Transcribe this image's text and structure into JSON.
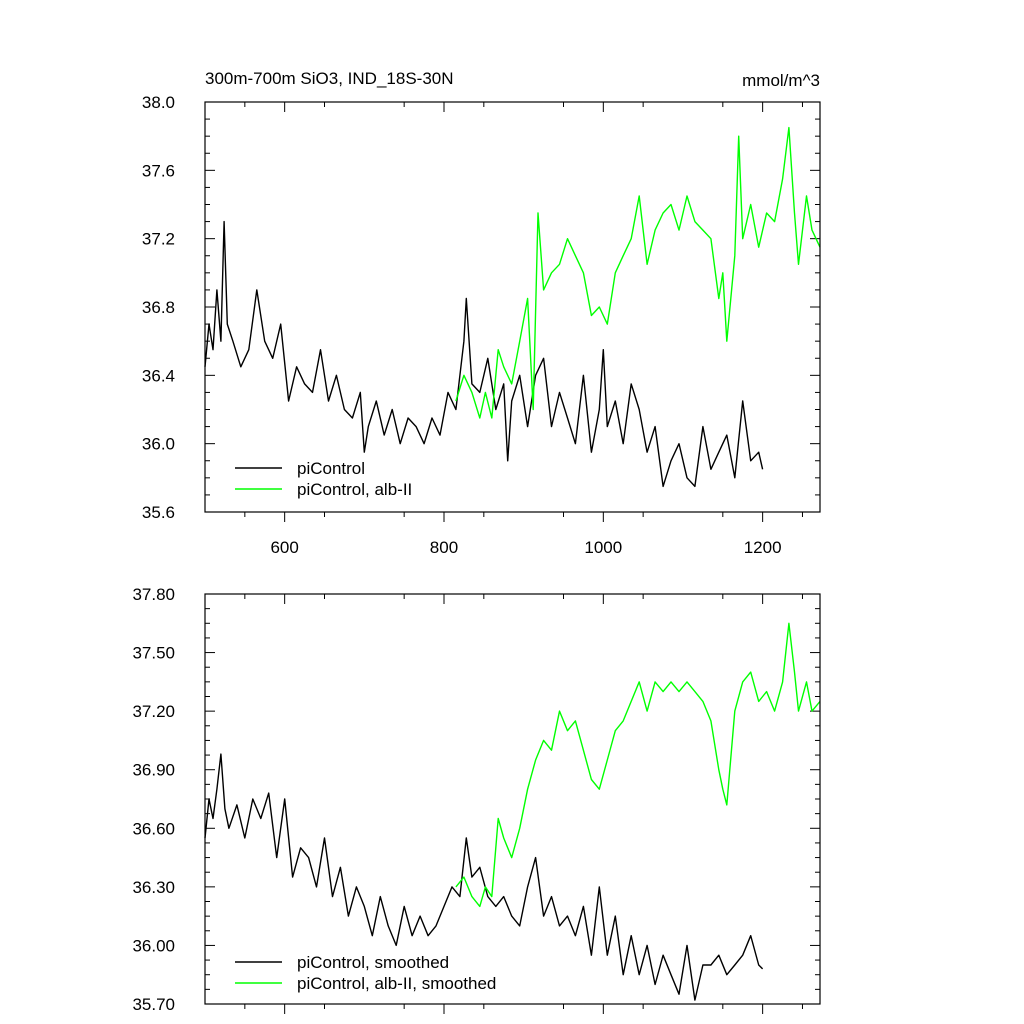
{
  "chart_data": [
    {
      "type": "line",
      "title": "300m-700m SiO3, IND_18S-30N",
      "units": "mmol/m^3",
      "xlim": [
        500,
        1272
      ],
      "ylim": [
        35.6,
        38.0
      ],
      "xticks": [
        600,
        800,
        1000,
        1200
      ],
      "xtick_labels": [
        "600",
        "800",
        "1000",
        "1200"
      ],
      "yticks": [
        35.6,
        36.0,
        36.4,
        36.8,
        37.2,
        37.6,
        38.0
      ],
      "ytick_labels": [
        "35.6",
        "36.0",
        "36.4",
        "36.8",
        "37.2",
        "37.6",
        "38.0"
      ],
      "legend_position": "bottom-left",
      "grid": false,
      "series": [
        {
          "name": "piControl",
          "color": "#000000",
          "x": [
            500,
            505,
            510,
            515,
            520,
            524,
            528,
            535,
            545,
            555,
            565,
            575,
            585,
            595,
            605,
            615,
            625,
            635,
            645,
            655,
            665,
            675,
            685,
            695,
            700,
            705,
            715,
            725,
            735,
            745,
            755,
            765,
            775,
            785,
            795,
            805,
            815,
            825,
            828,
            835,
            845,
            855,
            865,
            875,
            880,
            885,
            895,
            905,
            915,
            925,
            935,
            945,
            955,
            965,
            975,
            985,
            995,
            1000,
            1005,
            1015,
            1025,
            1035,
            1045,
            1055,
            1065,
            1075,
            1085,
            1095,
            1105,
            1115,
            1125,
            1135,
            1145,
            1155,
            1165,
            1175,
            1185,
            1195,
            1200
          ],
          "values": [
            36.45,
            36.7,
            36.55,
            36.9,
            36.6,
            37.3,
            36.7,
            36.6,
            36.45,
            36.55,
            36.9,
            36.6,
            36.5,
            36.7,
            36.25,
            36.45,
            36.35,
            36.3,
            36.55,
            36.25,
            36.4,
            36.2,
            36.15,
            36.3,
            35.95,
            36.1,
            36.25,
            36.05,
            36.2,
            36.0,
            36.15,
            36.1,
            36.0,
            36.15,
            36.05,
            36.3,
            36.2,
            36.6,
            36.85,
            36.35,
            36.3,
            36.5,
            36.2,
            36.35,
            35.9,
            36.25,
            36.4,
            36.1,
            36.4,
            36.5,
            36.1,
            36.3,
            36.15,
            36.0,
            36.4,
            35.95,
            36.2,
            36.55,
            36.1,
            36.25,
            36.0,
            36.35,
            36.2,
            35.95,
            36.1,
            35.75,
            35.9,
            36.0,
            35.8,
            35.75,
            36.1,
            35.85,
            35.95,
            36.05,
            35.8,
            36.25,
            35.9,
            35.95,
            35.85
          ]
        },
        {
          "name": "piControl, alb-II",
          "color": "#00ff00",
          "x": [
            815,
            825,
            835,
            845,
            852,
            860,
            868,
            875,
            885,
            895,
            905,
            912,
            918,
            925,
            935,
            945,
            955,
            965,
            975,
            985,
            995,
            1005,
            1015,
            1025,
            1035,
            1045,
            1055,
            1065,
            1075,
            1085,
            1095,
            1105,
            1115,
            1125,
            1135,
            1145,
            1150,
            1155,
            1165,
            1170,
            1175,
            1185,
            1195,
            1205,
            1215,
            1225,
            1233,
            1240,
            1245,
            1255,
            1262,
            1272
          ],
          "values": [
            36.25,
            36.4,
            36.3,
            36.15,
            36.3,
            36.15,
            36.55,
            36.45,
            36.35,
            36.6,
            36.85,
            36.2,
            37.35,
            36.9,
            37.0,
            37.05,
            37.2,
            37.1,
            37.0,
            36.75,
            36.8,
            36.7,
            37.0,
            37.1,
            37.2,
            37.45,
            37.05,
            37.25,
            37.35,
            37.4,
            37.25,
            37.45,
            37.3,
            37.25,
            37.2,
            36.85,
            37.0,
            36.6,
            37.1,
            37.8,
            37.2,
            37.4,
            37.15,
            37.35,
            37.3,
            37.55,
            37.85,
            37.35,
            37.05,
            37.45,
            37.25,
            37.15
          ]
        }
      ]
    },
    {
      "type": "line",
      "title": "",
      "xlim": [
        500,
        1272
      ],
      "ylim": [
        35.7,
        37.8
      ],
      "xticks": [
        600,
        800,
        1000,
        1200
      ],
      "xtick_labels": [],
      "yticks": [
        35.7,
        36.0,
        36.3,
        36.6,
        36.9,
        37.2,
        37.5,
        37.8
      ],
      "ytick_labels": [
        "35.70",
        "36.00",
        "36.30",
        "36.60",
        "36.90",
        "37.20",
        "37.50",
        "37.80"
      ],
      "legend_position": "bottom-left",
      "grid": false,
      "series": [
        {
          "name": "piControl, smoothed",
          "color": "#000000",
          "x": [
            500,
            505,
            510,
            515,
            520,
            525,
            530,
            540,
            550,
            560,
            570,
            580,
            590,
            600,
            610,
            620,
            630,
            640,
            650,
            660,
            670,
            680,
            690,
            700,
            710,
            720,
            730,
            740,
            750,
            760,
            770,
            780,
            790,
            800,
            810,
            820,
            828,
            835,
            845,
            855,
            865,
            875,
            885,
            895,
            905,
            915,
            925,
            935,
            945,
            955,
            965,
            975,
            985,
            995,
            1005,
            1015,
            1025,
            1035,
            1045,
            1055,
            1065,
            1075,
            1085,
            1095,
            1105,
            1115,
            1125,
            1135,
            1145,
            1155,
            1165,
            1175,
            1185,
            1195,
            1200
          ],
          "values": [
            36.55,
            36.75,
            36.65,
            36.8,
            36.98,
            36.7,
            36.6,
            36.72,
            36.55,
            36.75,
            36.65,
            36.78,
            36.45,
            36.75,
            36.35,
            36.5,
            36.45,
            36.3,
            36.55,
            36.25,
            36.4,
            36.15,
            36.3,
            36.2,
            36.05,
            36.25,
            36.1,
            36.0,
            36.2,
            36.05,
            36.15,
            36.05,
            36.1,
            36.2,
            36.3,
            36.25,
            36.55,
            36.35,
            36.4,
            36.25,
            36.2,
            36.25,
            36.15,
            36.1,
            36.3,
            36.45,
            36.15,
            36.25,
            36.1,
            36.15,
            36.05,
            36.2,
            35.95,
            36.3,
            35.95,
            36.15,
            35.85,
            36.05,
            35.85,
            36.0,
            35.8,
            35.95,
            35.85,
            35.75,
            36.0,
            35.72,
            35.9,
            35.9,
            35.95,
            35.85,
            35.9,
            35.95,
            36.05,
            35.9,
            35.88
          ]
        },
        {
          "name": "piControl, alb-II, smoothed",
          "color": "#00ff00",
          "x": [
            815,
            825,
            835,
            845,
            852,
            860,
            868,
            875,
            885,
            895,
            905,
            915,
            925,
            935,
            945,
            955,
            965,
            975,
            985,
            995,
            1005,
            1015,
            1025,
            1035,
            1045,
            1055,
            1065,
            1075,
            1085,
            1095,
            1105,
            1115,
            1125,
            1135,
            1145,
            1150,
            1155,
            1165,
            1175,
            1185,
            1195,
            1205,
            1215,
            1225,
            1233,
            1240,
            1245,
            1255,
            1262,
            1272
          ],
          "values": [
            36.3,
            36.35,
            36.25,
            36.2,
            36.3,
            36.25,
            36.65,
            36.55,
            36.45,
            36.6,
            36.8,
            36.95,
            37.05,
            37.0,
            37.2,
            37.1,
            37.15,
            37.0,
            36.85,
            36.8,
            36.95,
            37.1,
            37.15,
            37.25,
            37.35,
            37.2,
            37.35,
            37.3,
            37.35,
            37.3,
            37.35,
            37.3,
            37.25,
            37.15,
            36.9,
            36.8,
            36.72,
            37.2,
            37.35,
            37.4,
            37.25,
            37.3,
            37.2,
            37.35,
            37.65,
            37.4,
            37.2,
            37.35,
            37.2,
            37.25
          ]
        }
      ]
    }
  ]
}
